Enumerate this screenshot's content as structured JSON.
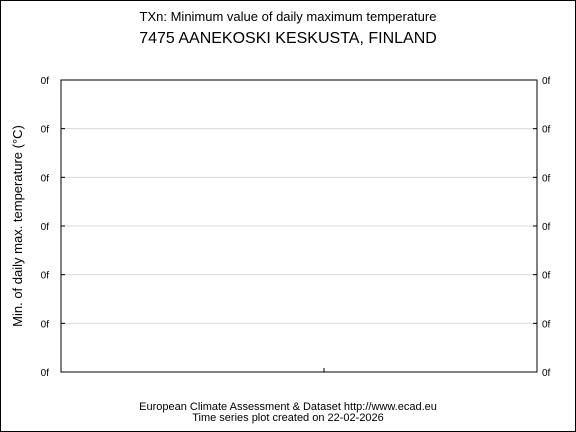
{
  "chart_data": {
    "type": "line",
    "title": "TXn: Minimum value of daily maximum temperature",
    "subtitle": "7475 AANEKOSKI KESKUSTA, FINLAND",
    "ylabel": "Min. of daily max. temperature (°C)",
    "xlabel": "",
    "y_tick_labels": [
      "0f",
      "0f",
      "0f",
      "0f",
      "0f",
      "0f",
      "0f"
    ],
    "x_ticks": [
      0.5
    ],
    "series": [],
    "grid": true
  },
  "footer": {
    "line1": "European Climate Assessment & Dataset  http://www.ecad.eu",
    "line2": "Time series plot created on 22-02-2026"
  }
}
